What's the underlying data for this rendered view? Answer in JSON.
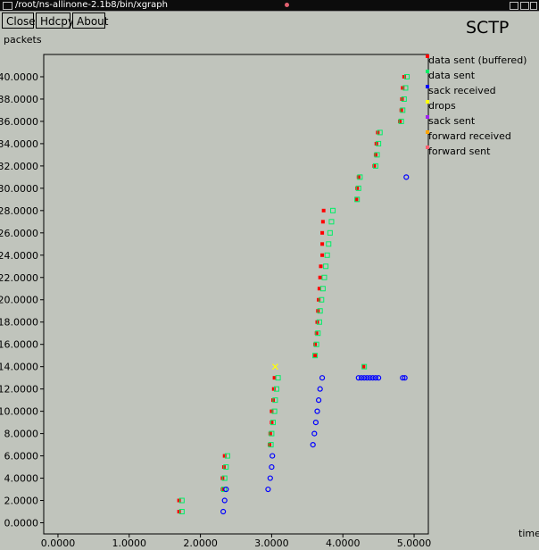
{
  "window": {
    "title": "/root/ns-allinone-2.1b8/bin/xgraph"
  },
  "toolbar": {
    "close_label": "Close",
    "hdcpy_label": "Hdcpy",
    "about_label": "About"
  },
  "chart_data": {
    "type": "scatter",
    "title": "SCTP",
    "ylabel": "packets",
    "xlabel": "time",
    "xlim": [
      -0.2,
      5.2
    ],
    "ylim": [
      -1.0,
      42.0
    ],
    "x_ticks": [
      "0.0000",
      "1.0000",
      "2.0000",
      "3.0000",
      "4.0000",
      "5.0000"
    ],
    "y_ticks": [
      "0.0000",
      "2.0000",
      "4.0000",
      "6.0000",
      "8.0000",
      "10.0000",
      "12.0000",
      "14.0000",
      "16.0000",
      "18.0000",
      "20.0000",
      "22.0000",
      "24.0000",
      "26.0000",
      "28.0000",
      "30.0000",
      "32.0000",
      "34.0000",
      "36.0000",
      "38.0000",
      "40.0000"
    ],
    "grid": false,
    "legend_position": "right",
    "series": [
      {
        "name": "data sent (buffered)",
        "color": "#ff0000",
        "marker": "filled-square",
        "points": [
          [
            1.7,
            1
          ],
          [
            1.7,
            2
          ],
          [
            2.31,
            3
          ],
          [
            2.31,
            4
          ],
          [
            2.33,
            5
          ],
          [
            2.34,
            6
          ],
          [
            2.97,
            7
          ],
          [
            2.98,
            8
          ],
          [
            3.0,
            9
          ],
          [
            3.0,
            10
          ],
          [
            3.02,
            11
          ],
          [
            3.03,
            12
          ],
          [
            3.04,
            13
          ],
          [
            3.61,
            15
          ],
          [
            3.61,
            16
          ],
          [
            3.63,
            17
          ],
          [
            3.64,
            18
          ],
          [
            3.65,
            19
          ],
          [
            3.66,
            20
          ],
          [
            3.67,
            21
          ],
          [
            3.68,
            22
          ],
          [
            3.69,
            23
          ],
          [
            3.71,
            24
          ],
          [
            3.71,
            25
          ],
          [
            3.71,
            26
          ],
          [
            3.72,
            27
          ],
          [
            3.73,
            28
          ],
          [
            4.19,
            29
          ],
          [
            4.2,
            30
          ],
          [
            4.22,
            31
          ],
          [
            4.44,
            32
          ],
          [
            4.46,
            33
          ],
          [
            4.47,
            34
          ],
          [
            4.49,
            35
          ],
          [
            4.8,
            36
          ],
          [
            4.82,
            37
          ],
          [
            4.83,
            38
          ],
          [
            4.84,
            39
          ],
          [
            4.86,
            40
          ],
          [
            4.29,
            14
          ]
        ]
      },
      {
        "name": "data sent",
        "color": "#00ee66",
        "marker": "open-square",
        "points": [
          [
            1.74,
            1
          ],
          [
            1.74,
            2
          ],
          [
            2.33,
            3
          ],
          [
            2.34,
            4
          ],
          [
            2.36,
            5
          ],
          [
            2.38,
            6
          ],
          [
            2.99,
            7
          ],
          [
            3.0,
            8
          ],
          [
            3.02,
            9
          ],
          [
            3.04,
            10
          ],
          [
            3.05,
            11
          ],
          [
            3.07,
            12
          ],
          [
            3.09,
            13
          ],
          [
            3.61,
            15
          ],
          [
            3.63,
            16
          ],
          [
            3.65,
            17
          ],
          [
            3.67,
            18
          ],
          [
            3.68,
            19
          ],
          [
            3.7,
            20
          ],
          [
            3.72,
            21
          ],
          [
            3.74,
            22
          ],
          [
            3.76,
            23
          ],
          [
            3.78,
            24
          ],
          [
            3.8,
            25
          ],
          [
            3.82,
            26
          ],
          [
            3.84,
            27
          ],
          [
            3.86,
            28
          ],
          [
            4.2,
            29
          ],
          [
            4.22,
            30
          ],
          [
            4.24,
            31
          ],
          [
            4.46,
            32
          ],
          [
            4.48,
            33
          ],
          [
            4.5,
            34
          ],
          [
            4.52,
            35
          ],
          [
            4.82,
            36
          ],
          [
            4.84,
            37
          ],
          [
            4.86,
            38
          ],
          [
            4.88,
            39
          ],
          [
            4.9,
            40
          ],
          [
            4.3,
            14
          ]
        ]
      },
      {
        "name": "sack received",
        "color": "#0000ff",
        "marker": "open-circle",
        "points": [
          [
            2.32,
            1
          ],
          [
            2.34,
            2
          ],
          [
            2.36,
            3
          ],
          [
            2.95,
            3
          ],
          [
            2.98,
            4
          ],
          [
            3.0,
            5
          ],
          [
            3.01,
            6
          ],
          [
            3.58,
            7
          ],
          [
            3.6,
            8
          ],
          [
            3.62,
            9
          ],
          [
            3.64,
            10
          ],
          [
            3.66,
            11
          ],
          [
            3.68,
            12
          ],
          [
            3.71,
            13
          ],
          [
            4.22,
            13
          ],
          [
            4.26,
            13
          ],
          [
            4.3,
            13
          ],
          [
            4.34,
            13
          ],
          [
            4.38,
            13
          ],
          [
            4.42,
            13
          ],
          [
            4.46,
            13
          ],
          [
            4.5,
            13
          ],
          [
            4.84,
            13
          ],
          [
            4.87,
            13
          ],
          [
            4.89,
            31
          ]
        ]
      },
      {
        "name": "drops",
        "color": "#ffff00",
        "marker": "x",
        "points": [
          [
            3.05,
            14
          ]
        ]
      },
      {
        "name": "sack sent",
        "color": "#a020f0",
        "marker": "none",
        "points": []
      },
      {
        "name": "forward received",
        "color": "#ffa500",
        "marker": "none",
        "points": []
      },
      {
        "name": "forward sent",
        "color": "#ff6070",
        "marker": "none",
        "points": []
      }
    ]
  }
}
